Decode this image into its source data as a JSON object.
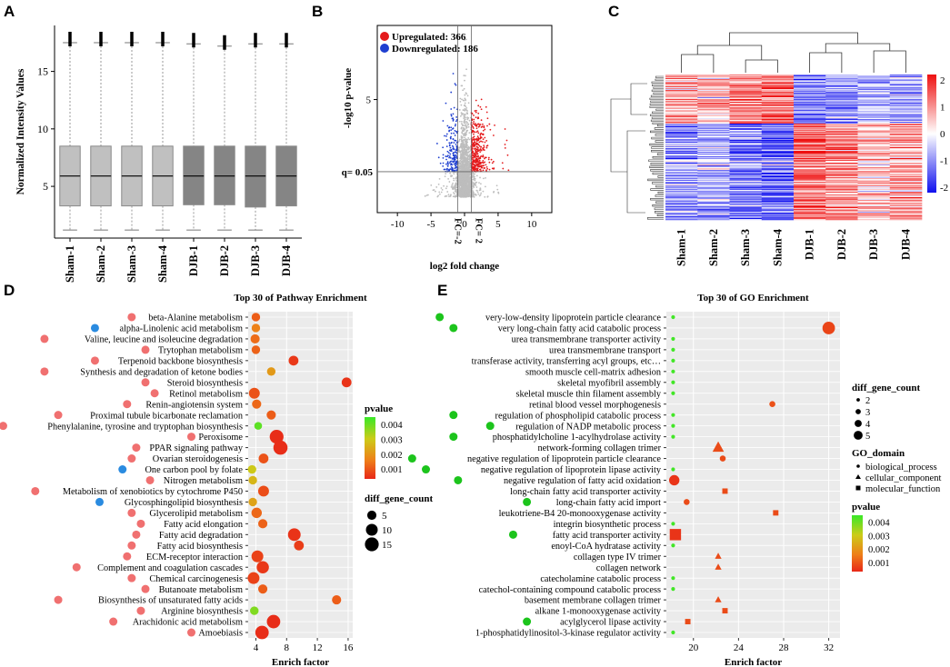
{
  "panels": {
    "a": "A",
    "b": "B",
    "c": "C",
    "d": "D",
    "e": "E"
  },
  "colors": {
    "up": "#e41a1c",
    "down": "#1f3fd0",
    "grey": "#bdbdbd",
    "bio": "#1cc41c",
    "pathA": "#f07070",
    "pathB": "#2a8be0",
    "plot_bg": "#ebebeb"
  },
  "chart_data": [
    {
      "id": "A",
      "type": "box",
      "ylabel": "Normalized Intensity Values",
      "categories": [
        "Sham-1",
        "Sham-2",
        "Sham-3",
        "Sham-4",
        "DJB-1",
        "DJB-2",
        "DJB-3",
        "DJB-4"
      ],
      "groups": [
        "light",
        "light",
        "light",
        "light",
        "dark",
        "dark",
        "dark",
        "dark"
      ],
      "stats": [
        {
          "min": 1.2,
          "q1": 3.3,
          "median": 5.9,
          "q3": 8.5,
          "max": 17.5
        },
        {
          "min": 1.2,
          "q1": 3.3,
          "median": 5.9,
          "q3": 8.5,
          "max": 17.5
        },
        {
          "min": 1.2,
          "q1": 3.3,
          "median": 5.9,
          "q3": 8.5,
          "max": 17.5
        },
        {
          "min": 1.2,
          "q1": 3.3,
          "median": 5.9,
          "q3": 8.5,
          "max": 17.5
        },
        {
          "min": 1.2,
          "q1": 3.4,
          "median": 5.9,
          "q3": 8.5,
          "max": 17.4
        },
        {
          "min": 1.2,
          "q1": 3.4,
          "median": 5.9,
          "q3": 8.5,
          "max": 17.2
        },
        {
          "min": 1.2,
          "q1": 3.2,
          "median": 5.9,
          "q3": 8.5,
          "max": 17.4
        },
        {
          "min": 1.2,
          "q1": 3.3,
          "median": 5.9,
          "q3": 8.5,
          "max": 17.4
        }
      ],
      "yticks": [
        5,
        10,
        15
      ],
      "ylim": [
        0.5,
        19
      ]
    },
    {
      "id": "B",
      "type": "scatter",
      "xlabel": "log2 fold change",
      "ylabel": "-log10 p-value",
      "legend": [
        {
          "key": "up",
          "label": "Upregulated: 366"
        },
        {
          "key": "down",
          "label": "Downregulated: 186"
        }
      ],
      "xticks": [
        -10,
        -5,
        0,
        5,
        10
      ],
      "xticks_text": [
        "-10",
        "-5",
        "0",
        "5",
        "10"
      ],
      "yticks": [
        5
      ],
      "xlim": [
        -13,
        13
      ],
      "ylim": [
        -0.8,
        8.8
      ],
      "q_label": "q= 0.05",
      "q_value": 1.3,
      "fc_labels": [
        "FC=-2",
        "FC= 2"
      ],
      "fc_values": [
        -1,
        1
      ],
      "up_count": 366,
      "down_count": 186
    },
    {
      "id": "C",
      "type": "heatmap",
      "columns": [
        "Sham-1",
        "Sham-2",
        "Sham-3",
        "Sham-4",
        "DJB-1",
        "DJB-2",
        "DJB-3",
        "DJB-4"
      ],
      "colorbar_ticks": [
        "2",
        "1",
        "0",
        "-1",
        "-2"
      ],
      "colorscale": {
        "min": -2,
        "max": 2,
        "low": "#1010ee",
        "mid": "#ffffff",
        "high": "#ee1010"
      },
      "upper_fraction": 0.34,
      "row_count": 160
    },
    {
      "id": "D",
      "type": "bubble",
      "title": "Top 30 of Pathway Enrichment",
      "xlabel": "Enrich factor",
      "xticks": [
        4,
        8,
        12,
        16
      ],
      "xlim": [
        3,
        16.6
      ],
      "legend_pvalue_title": "pvalue",
      "pvalue_ticks": [
        "0.004",
        "0.003",
        "0.002",
        "0.001"
      ],
      "pvalue_range": [
        0.0001,
        0.005
      ],
      "legend_size_title": "diff_gene_count",
      "size_ticks": [
        5,
        10,
        15
      ],
      "terms": [
        "beta-Alanine metabolism",
        "alpha-Linolenic acid metabolism",
        "Valine, leucine and isoleucine degradation",
        "Trytophan metabolism",
        "Terpenoid backbone biosynthesis",
        "Synthesis and degradation of ketone bodies",
        "Steroid biosynthesis",
        "Retinol metabolism",
        "Renin-angiotensin system",
        "Proximal tubule bicarbonate reclamation",
        "Phenylalanine, tyrosine and tryptophan biosynthesis",
        "Peroxisome",
        "PPAR signaling pathway",
        "Ovarian steroidogenesis",
        "One carbon pool by folate",
        "Nitrogen metabolism",
        "Metabolism of xenobiotics by cytochrome P450",
        "Glycosphingolipid biosynthesis",
        "Glycerolipid metabolism",
        "Fatty acid elongation",
        "Fatty acid degradation",
        "Fatty acid biosynthesis",
        "ECM-receptor interaction",
        "Complement and coagulation cascades",
        "Chemical carcinogenesis",
        "Butanoate metabolism",
        "Biosynthesis of unsaturated fatty acids",
        "Arginine biosynthesis",
        "Arachidonic acid metabolism",
        "Amoebiasis"
      ],
      "marker_group": [
        "A",
        "B",
        "A",
        "A",
        "A",
        "A",
        "A",
        "A",
        "A",
        "A",
        "A",
        "A",
        "A",
        "A",
        "B",
        "A",
        "A",
        "B",
        "A",
        "A",
        "A",
        "A",
        "A",
        "A",
        "A",
        "A",
        "A",
        "A",
        "A",
        "A"
      ],
      "enrich": [
        4.0,
        4.0,
        3.9,
        4.0,
        8.9,
        6.0,
        15.8,
        3.8,
        4.1,
        6.0,
        4.3,
        6.7,
        7.2,
        5.0,
        3.5,
        3.6,
        5.0,
        3.6,
        4.1,
        4.9,
        9.0,
        9.6,
        4.2,
        4.9,
        3.7,
        4.9,
        14.5,
        3.8,
        6.3,
        4.8
      ],
      "pvalue": [
        0.0011,
        0.0018,
        0.0014,
        0.0012,
        0.0004,
        0.0023,
        0.0003,
        0.0009,
        0.0013,
        0.0011,
        0.0046,
        0.0002,
        0.0002,
        0.0009,
        0.0033,
        0.0029,
        0.0008,
        0.0025,
        0.0013,
        0.0012,
        0.0003,
        0.0005,
        0.0006,
        0.0004,
        0.0006,
        0.0011,
        0.0011,
        0.0042,
        0.0002,
        0.0002
      ],
      "count": [
        4,
        4,
        5,
        4,
        6,
        4,
        6,
        8,
        5,
        5,
        3,
        15,
        16,
        6,
        4,
        4,
        8,
        4,
        7,
        5,
        12,
        6,
        10,
        11,
        10,
        5,
        5,
        4,
        14,
        14
      ]
    },
    {
      "id": "E",
      "type": "bubble",
      "title": "Top 30 of GO Enrichment",
      "xlabel": "Enrich factor",
      "xticks": [
        20,
        24,
        28,
        32
      ],
      "xlim": [
        17.6,
        33
      ],
      "legend_size_title": "diff_gene_count",
      "size_ticks": [
        2,
        3,
        4,
        5
      ],
      "legend_domain_title": "GO_domain",
      "domains": [
        "biological_process",
        "cellular_component",
        "molecular_function"
      ],
      "legend_pvalue_title": "pvalue",
      "pvalue_ticks": [
        "0.004",
        "0.003",
        "0.002",
        "0.001"
      ],
      "pvalue_range": [
        0.0001,
        0.0045
      ],
      "terms": [
        "very-low-density lipoprotein particle clearance",
        "very long-chain fatty acid catabolic process",
        "urea transmembrane transporter activity",
        "urea transmembrane transport",
        "transferase activity, transferring acyl groups, etc…",
        "smooth muscle cell-matrix adhesion",
        "skeletal myofibril assembly",
        "skeletal muscle thin filament assembly",
        "retinal blood vessel morphogenesis",
        "regulation of phospholipid catabolic process",
        "regulation of NADP metabolic process",
        "phosphatidylcholine 1-acylhydrolase activity",
        "network-forming collagen trimer",
        "negative regulation of lipoprotein particle clearance",
        "negative regulation of lipoprotein lipase activity",
        "negative regulation of fatty acid oxidation",
        "long-chain fatty acid transporter activity",
        "long-chain fatty acid import",
        "leukotriene-B4 20-monooxygenase activity",
        "integrin biosynthetic process",
        "fatty acid transporter activity",
        "enoyl-CoA hydratase activity",
        "collagen type IV trimer",
        "collagen network",
        "catecholamine catabolic process",
        "catechol-containing compound catabolic process",
        "basement membrane collagen trimer",
        "alkane 1-monooxygenase activity",
        "acylglycerol lipase activity",
        "1-phosphatidylinositol-3-kinase regulator activity"
      ],
      "marker_green": [
        true,
        true,
        false,
        false,
        false,
        false,
        false,
        false,
        false,
        true,
        true,
        true,
        false,
        true,
        true,
        true,
        false,
        true,
        false,
        false,
        true,
        false,
        false,
        false,
        false,
        false,
        false,
        false,
        true,
        false
      ],
      "domain": [
        "bp",
        "bp",
        "mf",
        "bp",
        "mf",
        "bp",
        "bp",
        "bp",
        "bp",
        "bp",
        "bp",
        "mf",
        "cc",
        "bp",
        "bp",
        "bp",
        "mf",
        "bp",
        "mf",
        "bp",
        "mf",
        "mf",
        "cc",
        "cc",
        "bp",
        "bp",
        "cc",
        "mf",
        "mf",
        "mf"
      ],
      "enrich": [
        18.2,
        32.0,
        18.2,
        18.2,
        18.2,
        18.2,
        18.2,
        18.2,
        27.0,
        18.2,
        18.2,
        18.2,
        22.2,
        22.6,
        18.2,
        18.3,
        22.8,
        19.4,
        27.3,
        18.2,
        18.4,
        18.2,
        22.2,
        22.2,
        18.2,
        18.2,
        22.2,
        22.8,
        19.5,
        18.2
      ],
      "pvalue": [
        0.0044,
        0.0006,
        0.0044,
        0.0044,
        0.0044,
        0.0044,
        0.0044,
        0.0044,
        0.0008,
        0.0044,
        0.0044,
        0.0044,
        0.0007,
        0.0007,
        0.0044,
        0.0003,
        0.0007,
        0.0007,
        0.0007,
        0.0044,
        0.0003,
        0.0044,
        0.0007,
        0.0007,
        0.0044,
        0.0044,
        0.0007,
        0.0007,
        0.0007,
        0.0044
      ],
      "count": [
        1,
        5,
        1,
        1,
        1,
        1,
        1,
        1,
        2,
        1,
        1,
        1,
        4,
        2,
        1,
        4,
        2,
        2,
        2,
        1,
        5,
        1,
        2,
        2,
        1,
        1,
        2,
        2,
        2,
        1
      ]
    }
  ]
}
